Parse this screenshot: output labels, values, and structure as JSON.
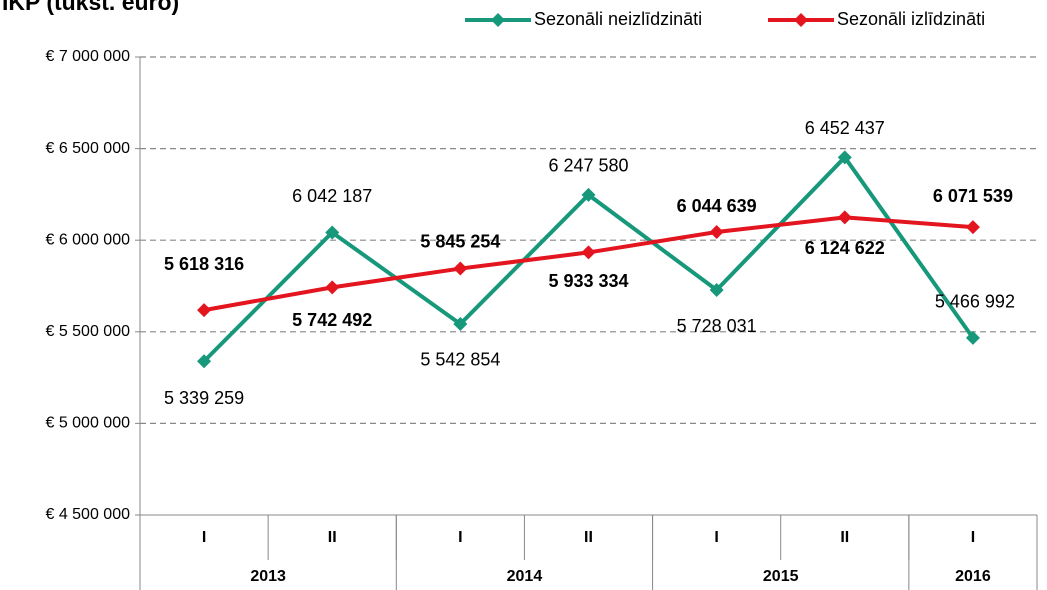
{
  "chart_data": {
    "type": "line",
    "title": "IKP (tūkst. euro)",
    "categories": [
      "I",
      "II",
      "I",
      "II",
      "I",
      "II",
      "I"
    ],
    "groups": [
      {
        "label": "2013",
        "size": 2
      },
      {
        "label": "2014",
        "size": 2
      },
      {
        "label": "2015",
        "size": 2
      },
      {
        "label": "2016",
        "size": 1
      }
    ],
    "series": [
      {
        "name": "Sezonāli neizlīdzināti",
        "color": "#17987a",
        "values": [
          5339259,
          6042187,
          5542854,
          6247580,
          5728031,
          6452437,
          5466992
        ],
        "value_labels": [
          "5 339 259",
          "6 042 187",
          "5 542 854",
          "6 247 580",
          "5 728 031",
          "6 452 437",
          "5 466 992"
        ]
      },
      {
        "name": "Sezonāli izlīdzināti",
        "color": "#e3151f",
        "values": [
          5618316,
          5742492,
          5845254,
          5933334,
          6044639,
          6124622,
          6071539
        ],
        "value_labels": [
          "5 618 316",
          "5 742 492",
          "5 845 254",
          "5 933 334",
          "6 044 639",
          "6 124 622",
          "6 071 539"
        ]
      }
    ],
    "ylim": [
      4500000,
      7000000
    ],
    "yticks": [
      {
        "value": 4500000,
        "label": "€ 4 500 000"
      },
      {
        "value": 5000000,
        "label": "€ 5 000 000"
      },
      {
        "value": 5500000,
        "label": "€ 5 500 000"
      },
      {
        "value": 6000000,
        "label": "€ 6 000 000"
      },
      {
        "value": 6500000,
        "label": "€ 6 500 000"
      },
      {
        "value": 7000000,
        "label": "€ 7 000 000"
      }
    ],
    "grid": true,
    "legend": "top-right"
  }
}
